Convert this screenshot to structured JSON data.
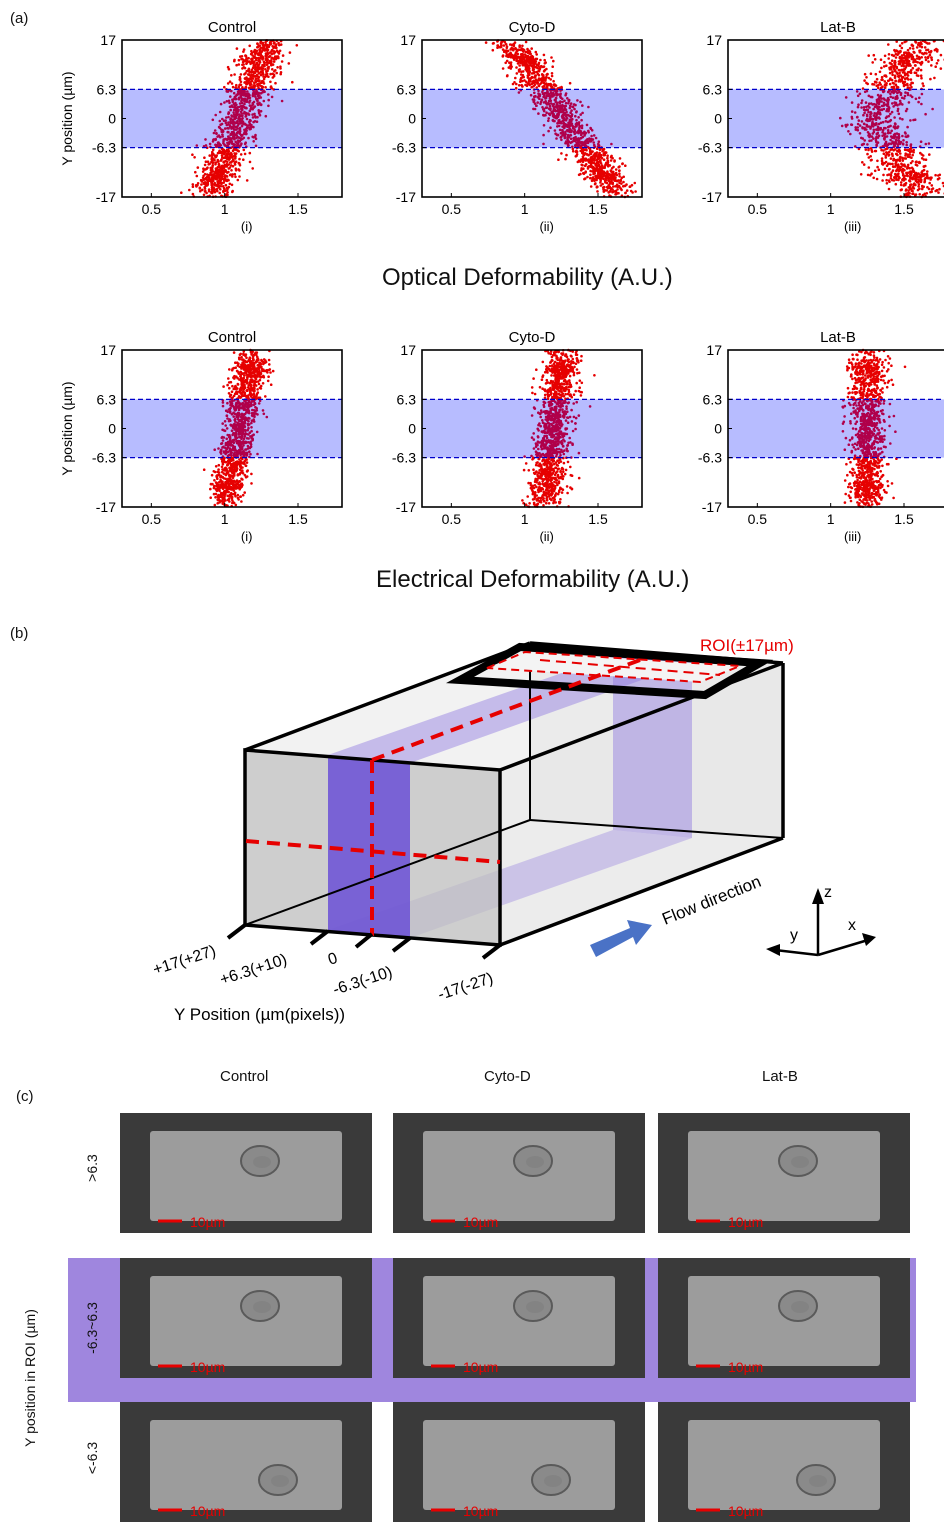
{
  "panel_a": {
    "label": "(a)",
    "optical_xlabel": "Optical Deformability (A.U.)",
    "electrical_xlabel": "Electrical Deformability (A.U.)",
    "ylabel": "Y position (µm)"
  },
  "chart_data": [
    {
      "type": "scatter",
      "title": "Control",
      "sublabel": "(i)",
      "row": "optical",
      "xlim": [
        0.3,
        1.8
      ],
      "ylim": [
        -17,
        17
      ],
      "xticks": [
        "0.5",
        "1",
        "1.5"
      ],
      "yticks": [
        "17",
        "6.3",
        "0",
        "-6.3",
        "-17"
      ],
      "band": [
        -6.3,
        6.3
      ],
      "cloud": {
        "cx": 1.1,
        "sx": 0.07,
        "slope": 0.012,
        "n": 1300
      },
      "colors": {
        "point": "#e60000",
        "band": "#aab0ff",
        "band_line": "#0000cc"
      }
    },
    {
      "type": "scatter",
      "title": "Cyto-D",
      "sublabel": "(ii)",
      "row": "optical",
      "xlim": [
        0.3,
        1.8
      ],
      "ylim": [
        -17,
        17
      ],
      "xticks": [
        "0.5",
        "1",
        "1.5"
      ],
      "yticks": [
        "17",
        "6.3",
        "0",
        "-6.3",
        "-17"
      ],
      "band": [
        -6.3,
        6.3
      ],
      "cloud": {
        "cx": 1.27,
        "sx": 0.07,
        "slope": -0.022,
        "n": 1300
      },
      "colors": {
        "point": "#e60000",
        "band": "#aab0ff",
        "band_line": "#0000cc"
      }
    },
    {
      "type": "scatter",
      "title": "Lat-B",
      "sublabel": "(iii)",
      "row": "optical",
      "xlim": [
        0.3,
        1.8
      ],
      "ylim": [
        -17,
        17
      ],
      "xticks": [
        "0.5",
        "1",
        "1.5"
      ],
      "yticks": [
        "17",
        "6.3",
        "0",
        "-6.3",
        "-17"
      ],
      "band": [
        -6.3,
        6.3
      ],
      "cloud": {
        "cx": 1.4,
        "sx": 0.1,
        "slope": 0.0,
        "n": 1100,
        "bimodal": true
      },
      "colors": {
        "point": "#e60000",
        "band": "#aab0ff",
        "band_line": "#0000cc"
      }
    },
    {
      "type": "scatter",
      "title": "Control",
      "sublabel": "(i)",
      "row": "electrical",
      "xlim": [
        0.3,
        1.8
      ],
      "ylim": [
        -17,
        17
      ],
      "xticks": [
        "0.5",
        "1",
        "1.5"
      ],
      "yticks": [
        "17",
        "6.3",
        "0",
        "-6.3",
        "-17"
      ],
      "band": [
        -6.3,
        6.3
      ],
      "cloud": {
        "cx": 1.1,
        "sx": 0.055,
        "slope": 0.006,
        "n": 1300
      },
      "colors": {
        "point": "#e60000",
        "band": "#aab0ff",
        "band_line": "#0000cc"
      }
    },
    {
      "type": "scatter",
      "title": "Cyto-D",
      "sublabel": "(ii)",
      "row": "electrical",
      "xlim": [
        0.3,
        1.8
      ],
      "ylim": [
        -17,
        17
      ],
      "xticks": [
        "0.5",
        "1",
        "1.5"
      ],
      "yticks": [
        "17",
        "6.3",
        "0",
        "-6.3",
        "-17"
      ],
      "band": [
        -6.3,
        6.3
      ],
      "cloud": {
        "cx": 1.2,
        "sx": 0.06,
        "slope": 0.004,
        "n": 1300
      },
      "colors": {
        "point": "#e60000",
        "band": "#aab0ff",
        "band_line": "#0000cc"
      }
    },
    {
      "type": "scatter",
      "title": "Lat-B",
      "sublabel": "(iii)",
      "row": "electrical",
      "xlim": [
        0.3,
        1.8
      ],
      "ylim": [
        -17,
        17
      ],
      "xticks": [
        "0.5",
        "1",
        "1.5"
      ],
      "yticks": [
        "17",
        "6.3",
        "0",
        "-6.3",
        "-17"
      ],
      "band": [
        -6.3,
        6.3
      ],
      "cloud": {
        "cx": 1.25,
        "sx": 0.06,
        "slope": 0.0,
        "n": 1200
      },
      "colors": {
        "point": "#e60000",
        "band": "#aab0ff",
        "band_line": "#0000cc"
      }
    }
  ],
  "panel_b": {
    "label": "(b)",
    "roi_label": "ROI(±17µm)",
    "flow_label": "Flow direction",
    "axis_title": "Y Position (µm(pixels))",
    "ticks": [
      "+17(+27)",
      "+6.3(+10)",
      "0",
      "-6.3(-10)",
      "-17(-27)"
    ],
    "axes": {
      "z": "z",
      "y": "y",
      "x": "x"
    },
    "colors": {
      "roi": "#e60000",
      "band": "#6a4fd6",
      "arrow": "#4a72c6"
    }
  },
  "panel_c": {
    "label": "(c)",
    "columns": [
      "Control",
      "Cyto-D",
      "Lat-B"
    ],
    "rows": [
      ">6.3",
      "-6.3~6.3",
      "<-6.3"
    ],
    "ylabel": "Y position in ROI (µm)",
    "scale_bar": "10µm",
    "highlight_color": "#9f86de"
  }
}
